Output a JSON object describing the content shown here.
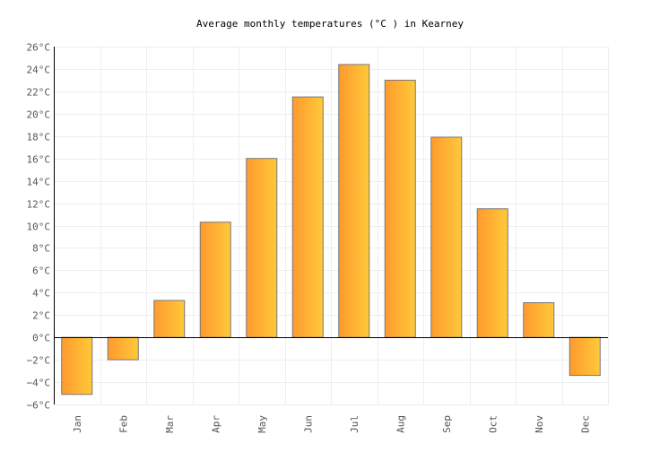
{
  "chart_data": {
    "type": "bar",
    "title": "Average monthly temperatures (°C ) in Kearney",
    "xlabel": "",
    "ylabel": "",
    "categories": [
      "Jan",
      "Feb",
      "Mar",
      "Apr",
      "May",
      "Jun",
      "Jul",
      "Aug",
      "Sep",
      "Oct",
      "Nov",
      "Dec"
    ],
    "values": [
      -5.1,
      -2.0,
      3.3,
      10.3,
      16.0,
      21.5,
      24.4,
      23.0,
      17.9,
      11.5,
      3.1,
      -3.4
    ],
    "ylim": [
      -6,
      26
    ],
    "ytick_step": 2,
    "ytick_unit": "°C",
    "grid": true,
    "legend": "none",
    "colors": {
      "bar_start": "#ff9a2e",
      "bar_end": "#ffc93a",
      "bar_stroke": "#777777",
      "grid": "#eeeeee"
    }
  }
}
